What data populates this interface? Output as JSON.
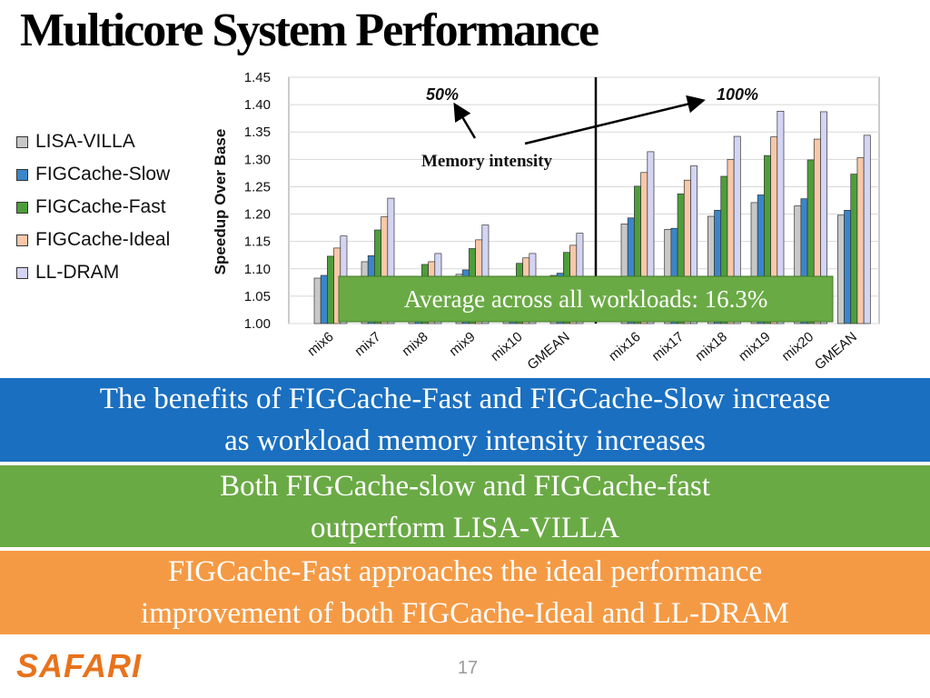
{
  "slide": {
    "title": "Multicore System Performance",
    "page_number": "17",
    "logo_text": "SAFARI"
  },
  "banners": {
    "blue": [
      "The benefits of FIGCache-Fast and FIGCache-Slow increase",
      "as workload memory intensity increases"
    ],
    "green": [
      "Both FIGCache-slow and FIGCache-fast",
      "outperform LISA-VILLA"
    ],
    "orange": [
      "FIGCache-Fast approaches the ideal performance",
      "improvement of both FIGCache-Ideal and LL-DRAM"
    ]
  },
  "colors": {
    "blue_banner": "#1a6fc0",
    "green_banner": "#6aaa45",
    "orange_banner": "#f59a44",
    "logo": "#e8731c"
  },
  "chart_data": {
    "type": "bar",
    "ylabel": "Speedup Over Base",
    "ylim": [
      1.0,
      1.45
    ],
    "yticks": [
      "1.00",
      "1.05",
      "1.10",
      "1.15",
      "1.20",
      "1.25",
      "1.30",
      "1.35",
      "1.40",
      "1.45"
    ],
    "grid": true,
    "legend_position": "left",
    "series": [
      {
        "name": "LISA-VILLA",
        "color": "#c8c8c8"
      },
      {
        "name": "FIGCache-Slow",
        "color": "#3a86c8"
      },
      {
        "name": "FIGCache-Fast",
        "color": "#4d9e3a"
      },
      {
        "name": "FIGCache-Ideal",
        "color": "#f8c8a8"
      },
      {
        "name": "LL-DRAM",
        "color": "#d4d4f4"
      }
    ],
    "groups": [
      {
        "label": "50%",
        "categories": [
          "mix6",
          "mix7",
          "mix8",
          "mix9",
          "mix10",
          "GMEAN"
        ],
        "values": [
          [
            1.083,
            1.088,
            1.123,
            1.138,
            1.16
          ],
          [
            1.113,
            1.124,
            1.171,
            1.195,
            1.229
          ],
          [
            1.065,
            1.07,
            1.108,
            1.113,
            1.128
          ],
          [
            1.09,
            1.098,
            1.137,
            1.153,
            1.18
          ],
          [
            1.075,
            1.078,
            1.11,
            1.12,
            1.128
          ],
          [
            1.088,
            1.092,
            1.13,
            1.143,
            1.165
          ]
        ]
      },
      {
        "label": "100%",
        "categories": [
          "mix16",
          "mix17",
          "mix18",
          "mix19",
          "mix20",
          "GMEAN"
        ],
        "values": [
          [
            1.182,
            1.193,
            1.251,
            1.276,
            1.314
          ],
          [
            1.172,
            1.174,
            1.237,
            1.262,
            1.288
          ],
          [
            1.196,
            1.207,
            1.269,
            1.3,
            1.342
          ],
          [
            1.221,
            1.235,
            1.307,
            1.341,
            1.388
          ],
          [
            1.215,
            1.228,
            1.299,
            1.337,
            1.387
          ],
          [
            1.198,
            1.207,
            1.273,
            1.303,
            1.344
          ]
        ]
      }
    ],
    "annotations": {
      "memory_intensity": "Memory intensity",
      "average": "Average across all workloads: 16.3%"
    }
  }
}
